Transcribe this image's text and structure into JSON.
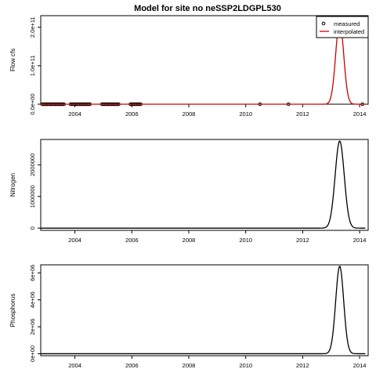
{
  "title": "Model for site no neSSP2LDGPL530",
  "chart_data": [
    {
      "type": "line",
      "panel": "flow",
      "ylabel": "Flow cfs",
      "xlim": [
        2002.8,
        2014.3
      ],
      "ylim": [
        0,
        230000000000.0
      ],
      "x_ticks": [
        2004,
        2006,
        2008,
        2010,
        2012,
        2014
      ],
      "y_ticks": [
        0,
        100000000000.0,
        200000000000.0
      ],
      "y_tick_labels": [
        "0.0e+00",
        "1.0e+11",
        "2.0e+11"
      ],
      "legend": {
        "placement": "top-right",
        "entries": [
          {
            "label": "measured",
            "symbol": "open-circle",
            "color": "#000000"
          },
          {
            "label": "interpolated",
            "symbol": "line",
            "color": "#cc0000"
          }
        ]
      },
      "series": [
        {
          "name": "measured",
          "kind": "points",
          "color": "#000000",
          "x_ranges": [
            [
              2002.85,
              2003.65
            ],
            [
              2003.85,
              2004.55
            ],
            [
              2004.95,
              2005.55
            ],
            [
              2005.95,
              2006.35
            ]
          ],
          "points": [
            [
              2010.5,
              0
            ],
            [
              2011.5,
              0
            ],
            [
              2014.1,
              0
            ]
          ]
        },
        {
          "name": "interpolated",
          "kind": "line",
          "color": "#cc0000",
          "peak_x": 2013.3,
          "peak_y": 215000000000.0,
          "width_years": 0.14,
          "x_range": [
            2002.8,
            2014.2
          ]
        }
      ]
    },
    {
      "type": "line",
      "panel": "nitrogen",
      "ylabel": "Nitrogen",
      "xlim": [
        2002.8,
        2014.3
      ],
      "ylim": [
        -70000,
        2800000
      ],
      "x_ticks": [
        2004,
        2006,
        2008,
        2010,
        2012,
        2014
      ],
      "y_ticks": [
        0,
        1000000,
        2000000
      ],
      "y_tick_labels": [
        "0",
        "1000000",
        "2000000"
      ],
      "series": [
        {
          "kind": "line",
          "color": "#000000",
          "peak_x": 2013.3,
          "peak_y": 2750000,
          "width_years": 0.16,
          "x_range": [
            2002.8,
            2014.2
          ]
        }
      ]
    },
    {
      "type": "line",
      "panel": "phosphorus",
      "ylabel": "Phosphorus",
      "xlim": [
        2002.8,
        2014.3
      ],
      "ylim": [
        -150000,
        6600000
      ],
      "x_ticks": [
        2004,
        2006,
        2008,
        2010,
        2012,
        2014
      ],
      "y_ticks": [
        0,
        2000000,
        4000000,
        6000000
      ],
      "y_tick_labels": [
        "0e+00",
        "2e+06",
        "4e+06",
        "6e+06"
      ],
      "series": [
        {
          "kind": "line",
          "color": "#000000",
          "peak_x": 2013.3,
          "peak_y": 6500000,
          "width_years": 0.14,
          "x_range": [
            2002.8,
            2014.2
          ]
        }
      ]
    }
  ]
}
